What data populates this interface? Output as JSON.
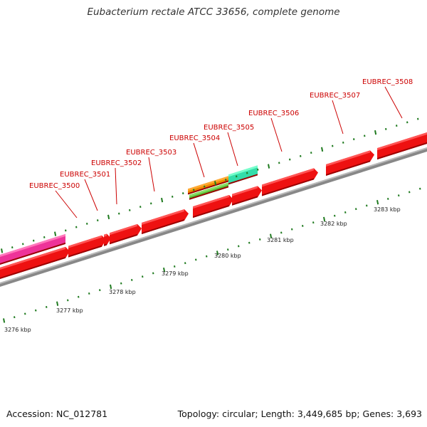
{
  "title": "Eubacterium rectale ATCC 33656, complete genome",
  "footer": {
    "accession": "Accession: NC_012781",
    "summary": "Topology: circular; Length: 3,449,685 bp; Genes: 3,693"
  },
  "colors": {
    "gene_label": "#cc0000",
    "gene_fill": "#ee1111",
    "gene_top": "#ff5555",
    "gene_shadow": "#990000",
    "backbone": "#888888",
    "tick": "#1f7a1f",
    "magenta_feature": "#ee3399",
    "orange_feature": "#ee8800",
    "green_feature": "#55bb33",
    "teal_feature": "#33ddaa"
  },
  "gene_labels": [
    "EUBREC_3500",
    "EUBREC_3501",
    "EUBREC_3502",
    "EUBREC_3503",
    "EUBREC_3504",
    "EUBREC_3505",
    "EUBREC_3506",
    "EUBREC_3507",
    "EUBREC_3508"
  ],
  "scale_labels": [
    "3276 kbp",
    "3277 kbp",
    "3278 kbp",
    "3279 kbp",
    "3280 kbp",
    "3281 kbp",
    "3282 kbp",
    "3283 kbp"
  ]
}
